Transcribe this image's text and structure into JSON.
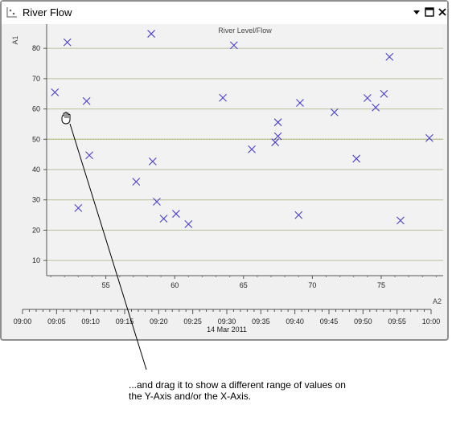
{
  "window": {
    "title": "River Flow",
    "icons": {
      "app": "scatter-chart-icon",
      "dropdown": "chevron-down-icon",
      "maximize": "maximize-icon",
      "close": "close-icon"
    },
    "cursor_icon": "grab-hand-icon"
  },
  "callout": {
    "line1": "...and drag it to show a different range of values on",
    "line2": "the Y-Axis and/or the X-Axis."
  },
  "colors": {
    "marker": "#4a3fd0",
    "grid": "#b8bf9a",
    "mean_line": "#a8b070",
    "plot_bg": "#f2f2f2"
  },
  "chart_data": {
    "type": "scatter",
    "title": "River Level/Flow",
    "ylabel": "A1",
    "xlabel": "A2",
    "ylim": [
      5,
      88
    ],
    "yticks": [
      10,
      20,
      30,
      40,
      50,
      60,
      70,
      80
    ],
    "xlim": [
      50.7,
      79.5
    ],
    "xticks": [
      55,
      60,
      65,
      70,
      75
    ],
    "time_axis": {
      "ticks": [
        "09:00",
        "09:05",
        "09:10",
        "09:15",
        "09:20",
        "09:25",
        "09:30",
        "09:35",
        "09:40",
        "09:45",
        "09:50",
        "09:55",
        "10:00"
      ],
      "date": "14 Mar 2011"
    },
    "mean_line": 50,
    "grid": true,
    "series": [
      {
        "x": [
          51.3,
          52.2,
          53.0,
          53.6,
          53.8,
          57.2,
          58.3,
          58.4,
          58.7,
          59.2,
          60.1,
          61.0,
          63.5,
          64.3,
          65.6,
          67.3,
          67.5,
          67.5,
          69.0,
          69.1,
          71.6,
          73.2,
          74.0,
          74.6,
          75.2,
          75.6,
          76.4,
          78.5
        ],
        "y": [
          65.5,
          82.0,
          27.3,
          62.6,
          44.7,
          36.0,
          84.8,
          42.7,
          29.4,
          23.8,
          25.4,
          22.0,
          63.7,
          81.0,
          46.7,
          49.0,
          55.6,
          51.0,
          25.0,
          62.0,
          58.9,
          43.6,
          63.6,
          60.5,
          65.0,
          77.2,
          23.2,
          50.4
        ]
      }
    ]
  }
}
